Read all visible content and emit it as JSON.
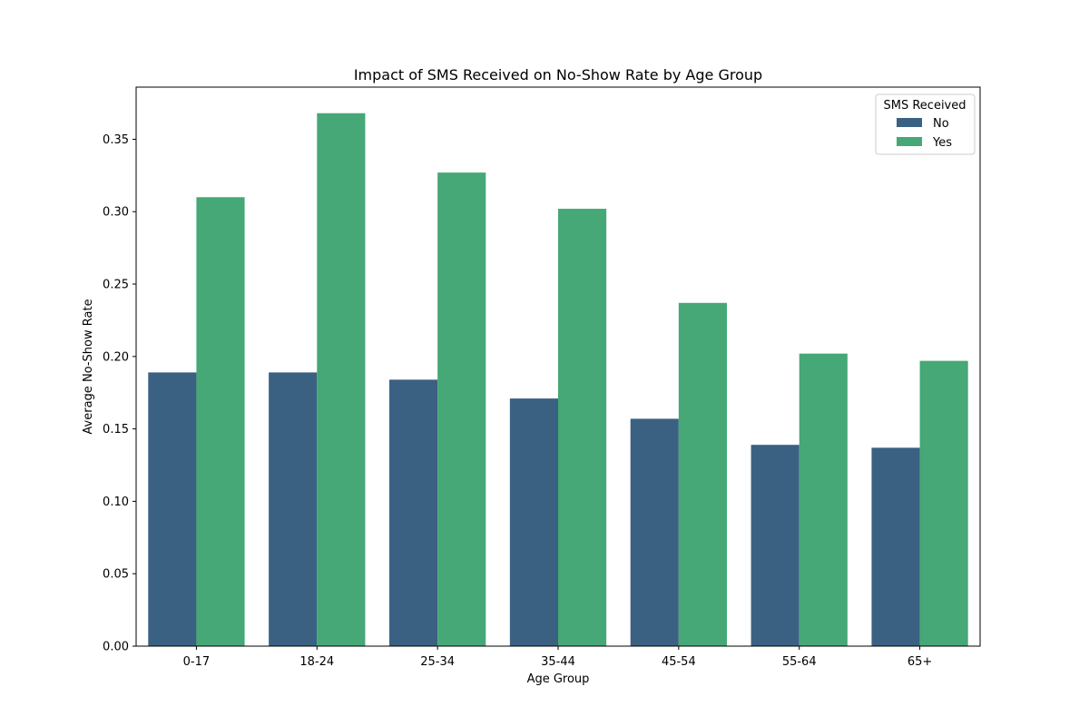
{
  "chart_data": {
    "type": "bar",
    "title": "Impact of SMS Received on No-Show Rate by Age Group",
    "xlabel": "Age Group",
    "ylabel": "Average No-Show Rate",
    "categories": [
      "0-17",
      "18-24",
      "25-34",
      "35-44",
      "45-54",
      "55-64",
      "65+"
    ],
    "ylim": [
      0,
      0.386
    ],
    "yticks": [
      "0.00",
      "0.05",
      "0.10",
      "0.15",
      "0.20",
      "0.25",
      "0.30",
      "0.35"
    ],
    "grid": false,
    "legend": {
      "title": "SMS Received",
      "placement": "top-right"
    },
    "series": [
      {
        "name": "No",
        "color": "#3b6182",
        "values": [
          0.189,
          0.189,
          0.184,
          0.171,
          0.157,
          0.139,
          0.137
        ]
      },
      {
        "name": "Yes",
        "color": "#45a876",
        "values": [
          0.31,
          0.368,
          0.327,
          0.302,
          0.237,
          0.202,
          0.197
        ]
      }
    ]
  }
}
